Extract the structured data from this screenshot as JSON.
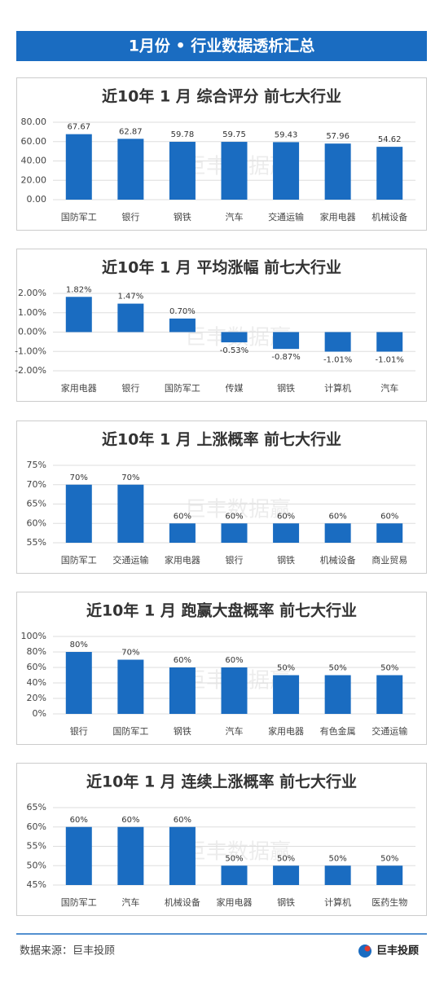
{
  "header": {
    "title": "1月份 • 行业数据透析汇总"
  },
  "watermark": "巨丰数据赢",
  "footer": {
    "source": "数据来源：巨丰投顾",
    "brand": "巨丰投顾"
  },
  "chart_data": [
    {
      "type": "bar",
      "title": "近10年 1 月 综合评分 前七大行业",
      "categories": [
        "国防军工",
        "银行",
        "钢铁",
        "汽车",
        "交通运输",
        "家用电器",
        "机械设备"
      ],
      "values": [
        67.67,
        62.87,
        59.78,
        59.75,
        59.43,
        57.96,
        54.62
      ],
      "color": "#1a6cc1",
      "ylim": [
        0,
        80
      ],
      "yticks": [
        {
          "value": 0,
          "label": "0.00"
        },
        {
          "value": 20,
          "label": "20.00"
        },
        {
          "value": 40,
          "label": "40.00"
        },
        {
          "value": 60,
          "label": "60.00"
        },
        {
          "value": 80,
          "label": "80.00"
        }
      ],
      "grid": true
    },
    {
      "type": "bar",
      "title": "近10年 1 月 平均涨幅 前七大行业",
      "categories": [
        "家用电器",
        "银行",
        "国防军工",
        "传媒",
        "钢铁",
        "计算机",
        "汽车"
      ],
      "values": [
        1.82,
        1.47,
        0.7,
        -0.53,
        -0.87,
        -1.01,
        -1.01
      ],
      "value_labels": [
        "1.82%",
        "1.47%",
        "0.70%",
        "-0.53%",
        "-0.87%",
        "-1.01%",
        "-1.01%"
      ],
      "color": "#1a6cc1",
      "ylim": [
        -2,
        2
      ],
      "yticks": [
        {
          "value": -2,
          "label": "-2.00%"
        },
        {
          "value": -1,
          "label": "-1.00%"
        },
        {
          "value": 0,
          "label": "0.00%"
        },
        {
          "value": 1,
          "label": "1.00%"
        },
        {
          "value": 2,
          "label": "2.00%"
        }
      ],
      "grid": true
    },
    {
      "type": "bar",
      "title": "近10年 1 月 上涨概率 前七大行业",
      "categories": [
        "国防军工",
        "交通运输",
        "家用电器",
        "银行",
        "钢铁",
        "机械设备",
        "商业贸易"
      ],
      "values": [
        70,
        70,
        60,
        60,
        60,
        60,
        60
      ],
      "value_labels": [
        "70%",
        "70%",
        "60%",
        "60%",
        "60%",
        "60%",
        "60%"
      ],
      "color": "#1a6cc1",
      "ylim": [
        55,
        75
      ],
      "yticks": [
        {
          "value": 55,
          "label": "55%"
        },
        {
          "value": 60,
          "label": "60%"
        },
        {
          "value": 65,
          "label": "65%"
        },
        {
          "value": 70,
          "label": "70%"
        },
        {
          "value": 75,
          "label": "75%"
        }
      ],
      "grid": true
    },
    {
      "type": "bar",
      "title": "近10年 1 月 跑赢大盘概率 前七大行业",
      "categories": [
        "银行",
        "国防军工",
        "钢铁",
        "汽车",
        "家用电器",
        "有色金属",
        "交通运输"
      ],
      "values": [
        80,
        70,
        60,
        60,
        50,
        50,
        50
      ],
      "value_labels": [
        "80%",
        "70%",
        "60%",
        "60%",
        "50%",
        "50%",
        "50%"
      ],
      "color": "#1a6cc1",
      "ylim": [
        0,
        100
      ],
      "yticks": [
        {
          "value": 0,
          "label": "0%"
        },
        {
          "value": 20,
          "label": "20%"
        },
        {
          "value": 40,
          "label": "40%"
        },
        {
          "value": 60,
          "label": "60%"
        },
        {
          "value": 80,
          "label": "80%"
        },
        {
          "value": 100,
          "label": "100%"
        }
      ],
      "grid": true
    },
    {
      "type": "bar",
      "title": "近10年 1 月 连续上涨概率 前七大行业",
      "categories": [
        "国防军工",
        "汽车",
        "机械设备",
        "家用电器",
        "钢铁",
        "计算机",
        "医药生物"
      ],
      "values": [
        60,
        60,
        60,
        50,
        50,
        50,
        50
      ],
      "value_labels": [
        "60%",
        "60%",
        "60%",
        "50%",
        "50%",
        "50%",
        "50%"
      ],
      "color": "#1a6cc1",
      "ylim": [
        45,
        65
      ],
      "yticks": [
        {
          "value": 45,
          "label": "45%"
        },
        {
          "value": 50,
          "label": "50%"
        },
        {
          "value": 55,
          "label": "55%"
        },
        {
          "value": 60,
          "label": "60%"
        },
        {
          "value": 65,
          "label": "65%"
        }
      ],
      "grid": true
    }
  ]
}
